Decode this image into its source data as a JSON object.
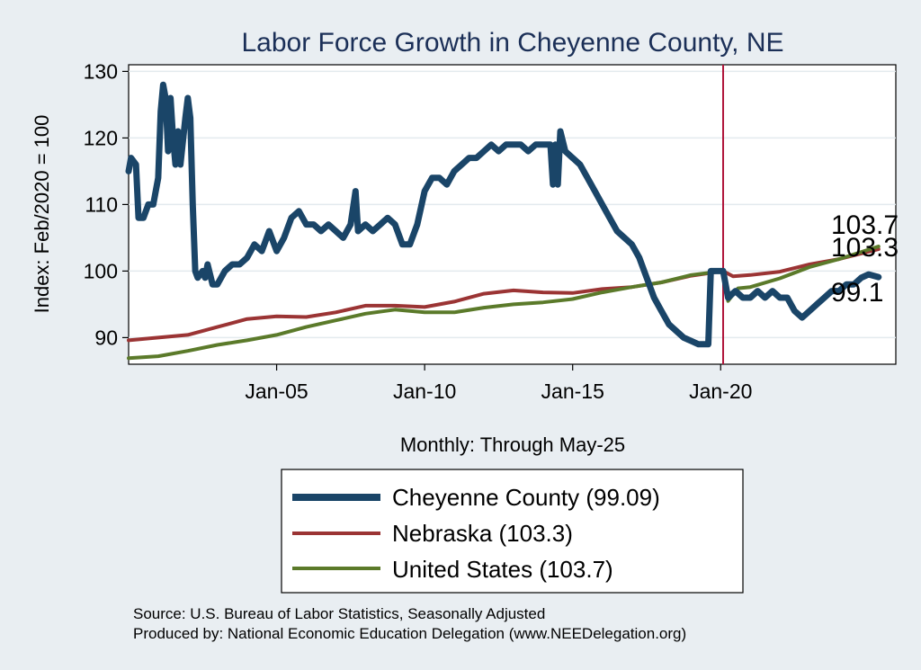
{
  "chart_data": {
    "type": "line",
    "title": "Labor Force Growth in Cheyenne  County, NE",
    "xlabel": "Monthly: Through May-25",
    "ylabel": "Index: Feb/2020 = 100",
    "ylim": [
      86,
      131
    ],
    "xlim": [
      "2000-01",
      "2025-12"
    ],
    "x_ticks": [
      {
        "label": "Jan-05",
        "date": "2005-01"
      },
      {
        "label": "Jan-10",
        "date": "2010-01"
      },
      {
        "label": "Jan-15",
        "date": "2015-01"
      },
      {
        "label": "Jan-20",
        "date": "2020-01"
      }
    ],
    "y_ticks": [
      90,
      100,
      110,
      120,
      130
    ],
    "grid": true,
    "vertical_line": {
      "date": "2020-02",
      "color": "#b0163b"
    },
    "end_labels": [
      "103.7",
      "103.3",
      "99.1"
    ],
    "legend_position": "bottom",
    "series": [
      {
        "name": "Cheyenne  County",
        "legend_label": "Cheyenne  County (99.09)",
        "color": "#1a4568",
        "points": [
          [
            "2000-01",
            115
          ],
          [
            "2000-02",
            117
          ],
          [
            "2000-04",
            116
          ],
          [
            "2000-05",
            108
          ],
          [
            "2000-07",
            108
          ],
          [
            "2000-09",
            110
          ],
          [
            "2000-11",
            110
          ],
          [
            "2001-01",
            114
          ],
          [
            "2001-02",
            124
          ],
          [
            "2001-03",
            128
          ],
          [
            "2001-04",
            126
          ],
          [
            "2001-05",
            118
          ],
          [
            "2001-06",
            126
          ],
          [
            "2001-07",
            120
          ],
          [
            "2001-08",
            116
          ],
          [
            "2001-09",
            121
          ],
          [
            "2001-10",
            116
          ],
          [
            "2001-12",
            123
          ],
          [
            "2002-01",
            126
          ],
          [
            "2002-02",
            123
          ],
          [
            "2002-03",
            110
          ],
          [
            "2002-04",
            100
          ],
          [
            "2002-05",
            99
          ],
          [
            "2002-07",
            100
          ],
          [
            "2002-08",
            99
          ],
          [
            "2002-09",
            101
          ],
          [
            "2002-11",
            98
          ],
          [
            "2003-01",
            98
          ],
          [
            "2003-04",
            100
          ],
          [
            "2003-07",
            101
          ],
          [
            "2003-10",
            101
          ],
          [
            "2004-01",
            102
          ],
          [
            "2004-04",
            104
          ],
          [
            "2004-07",
            103
          ],
          [
            "2004-10",
            106
          ],
          [
            "2005-01",
            103
          ],
          [
            "2005-04",
            105
          ],
          [
            "2005-07",
            108
          ],
          [
            "2005-10",
            109
          ],
          [
            "2006-01",
            107
          ],
          [
            "2006-04",
            107
          ],
          [
            "2006-07",
            106
          ],
          [
            "2006-10",
            107
          ],
          [
            "2007-01",
            106
          ],
          [
            "2007-04",
            105
          ],
          [
            "2007-07",
            107
          ],
          [
            "2007-09",
            112
          ],
          [
            "2007-10",
            106
          ],
          [
            "2008-01",
            107
          ],
          [
            "2008-04",
            106
          ],
          [
            "2008-07",
            107
          ],
          [
            "2008-10",
            108
          ],
          [
            "2009-01",
            107
          ],
          [
            "2009-04",
            104
          ],
          [
            "2009-07",
            104
          ],
          [
            "2009-10",
            107
          ],
          [
            "2010-01",
            112
          ],
          [
            "2010-04",
            114
          ],
          [
            "2010-07",
            114
          ],
          [
            "2010-10",
            113
          ],
          [
            "2011-01",
            115
          ],
          [
            "2011-04",
            116
          ],
          [
            "2011-07",
            117
          ],
          [
            "2011-10",
            117
          ],
          [
            "2012-01",
            118
          ],
          [
            "2012-04",
            119
          ],
          [
            "2012-07",
            118
          ],
          [
            "2012-10",
            119
          ],
          [
            "2013-01",
            119
          ],
          [
            "2013-04",
            119
          ],
          [
            "2013-07",
            118
          ],
          [
            "2013-10",
            119
          ],
          [
            "2014-01",
            119
          ],
          [
            "2014-04",
            119
          ],
          [
            "2014-05",
            113
          ],
          [
            "2014-06",
            119
          ],
          [
            "2014-07",
            113
          ],
          [
            "2014-08",
            121
          ],
          [
            "2014-10",
            118
          ],
          [
            "2015-01",
            117
          ],
          [
            "2015-04",
            116
          ],
          [
            "2015-07",
            114
          ],
          [
            "2015-10",
            112
          ],
          [
            "2016-01",
            110
          ],
          [
            "2016-04",
            108
          ],
          [
            "2016-07",
            106
          ],
          [
            "2016-10",
            105
          ],
          [
            "2017-01",
            104
          ],
          [
            "2017-04",
            102
          ],
          [
            "2017-07",
            99
          ],
          [
            "2017-10",
            96
          ],
          [
            "2018-01",
            94
          ],
          [
            "2018-04",
            92
          ],
          [
            "2018-07",
            91
          ],
          [
            "2018-10",
            90
          ],
          [
            "2019-01",
            89.5
          ],
          [
            "2019-04",
            89
          ],
          [
            "2019-08",
            89
          ],
          [
            "2019-09",
            100
          ],
          [
            "2019-12",
            100
          ],
          [
            "2020-02",
            100
          ],
          [
            "2020-04",
            96
          ],
          [
            "2020-07",
            97
          ],
          [
            "2020-10",
            96
          ],
          [
            "2021-01",
            96
          ],
          [
            "2021-04",
            97
          ],
          [
            "2021-07",
            96
          ],
          [
            "2021-10",
            97
          ],
          [
            "2022-01",
            96
          ],
          [
            "2022-04",
            96
          ],
          [
            "2022-07",
            94
          ],
          [
            "2022-10",
            93
          ],
          [
            "2023-01",
            94
          ],
          [
            "2023-04",
            95
          ],
          [
            "2023-07",
            96
          ],
          [
            "2023-10",
            97
          ],
          [
            "2024-01",
            97
          ],
          [
            "2024-04",
            98
          ],
          [
            "2024-07",
            98
          ],
          [
            "2024-10",
            99
          ],
          [
            "2025-01",
            99.5
          ],
          [
            "2025-05",
            99.09
          ]
        ]
      },
      {
        "name": "Nebraska",
        "legend_label": "Nebraska (103.3)",
        "color": "#9b3434",
        "points": [
          [
            "2000-01",
            89.6
          ],
          [
            "2001-01",
            90.0
          ],
          [
            "2002-01",
            90.4
          ],
          [
            "2003-01",
            91.6
          ],
          [
            "2004-01",
            92.8
          ],
          [
            "2005-01",
            93.2
          ],
          [
            "2006-01",
            93.1
          ],
          [
            "2007-01",
            93.8
          ],
          [
            "2008-01",
            94.8
          ],
          [
            "2009-01",
            94.8
          ],
          [
            "2010-01",
            94.6
          ],
          [
            "2011-01",
            95.4
          ],
          [
            "2012-01",
            96.6
          ],
          [
            "2013-01",
            97.1
          ],
          [
            "2014-01",
            96.8
          ],
          [
            "2015-01",
            96.7
          ],
          [
            "2016-01",
            97.3
          ],
          [
            "2017-01",
            97.6
          ],
          [
            "2018-01",
            98.3
          ],
          [
            "2019-01",
            99.3
          ],
          [
            "2020-02",
            100.0
          ],
          [
            "2020-06",
            99.2
          ],
          [
            "2021-01",
            99.4
          ],
          [
            "2022-01",
            99.9
          ],
          [
            "2023-01",
            101.0
          ],
          [
            "2024-01",
            101.8
          ],
          [
            "2025-05",
            103.3
          ]
        ]
      },
      {
        "name": "United States",
        "legend_label": "United States (103.7)",
        "color": "#5b7a2a",
        "points": [
          [
            "2000-01",
            86.9
          ],
          [
            "2001-01",
            87.2
          ],
          [
            "2002-01",
            88.0
          ],
          [
            "2003-01",
            88.9
          ],
          [
            "2004-01",
            89.6
          ],
          [
            "2005-01",
            90.4
          ],
          [
            "2006-01",
            91.6
          ],
          [
            "2007-01",
            92.6
          ],
          [
            "2008-01",
            93.6
          ],
          [
            "2009-01",
            94.2
          ],
          [
            "2010-01",
            93.8
          ],
          [
            "2011-01",
            93.8
          ],
          [
            "2012-01",
            94.5
          ],
          [
            "2013-01",
            95.0
          ],
          [
            "2014-01",
            95.3
          ],
          [
            "2015-01",
            95.8
          ],
          [
            "2016-01",
            96.8
          ],
          [
            "2017-01",
            97.6
          ],
          [
            "2018-01",
            98.3
          ],
          [
            "2019-01",
            99.4
          ],
          [
            "2020-02",
            100.0
          ],
          [
            "2020-04",
            95.5
          ],
          [
            "2020-08",
            97.4
          ],
          [
            "2021-01",
            97.6
          ],
          [
            "2022-01",
            98.9
          ],
          [
            "2023-01",
            100.6
          ],
          [
            "2024-01",
            101.8
          ],
          [
            "2025-05",
            103.7
          ]
        ]
      }
    ]
  },
  "source_lines": [
    "Source: U.S. Bureau of Labor Statistics, Seasonally Adjusted",
    "Produced by: National Economic Education Delegation (www.NEEDelegation.org)"
  ]
}
